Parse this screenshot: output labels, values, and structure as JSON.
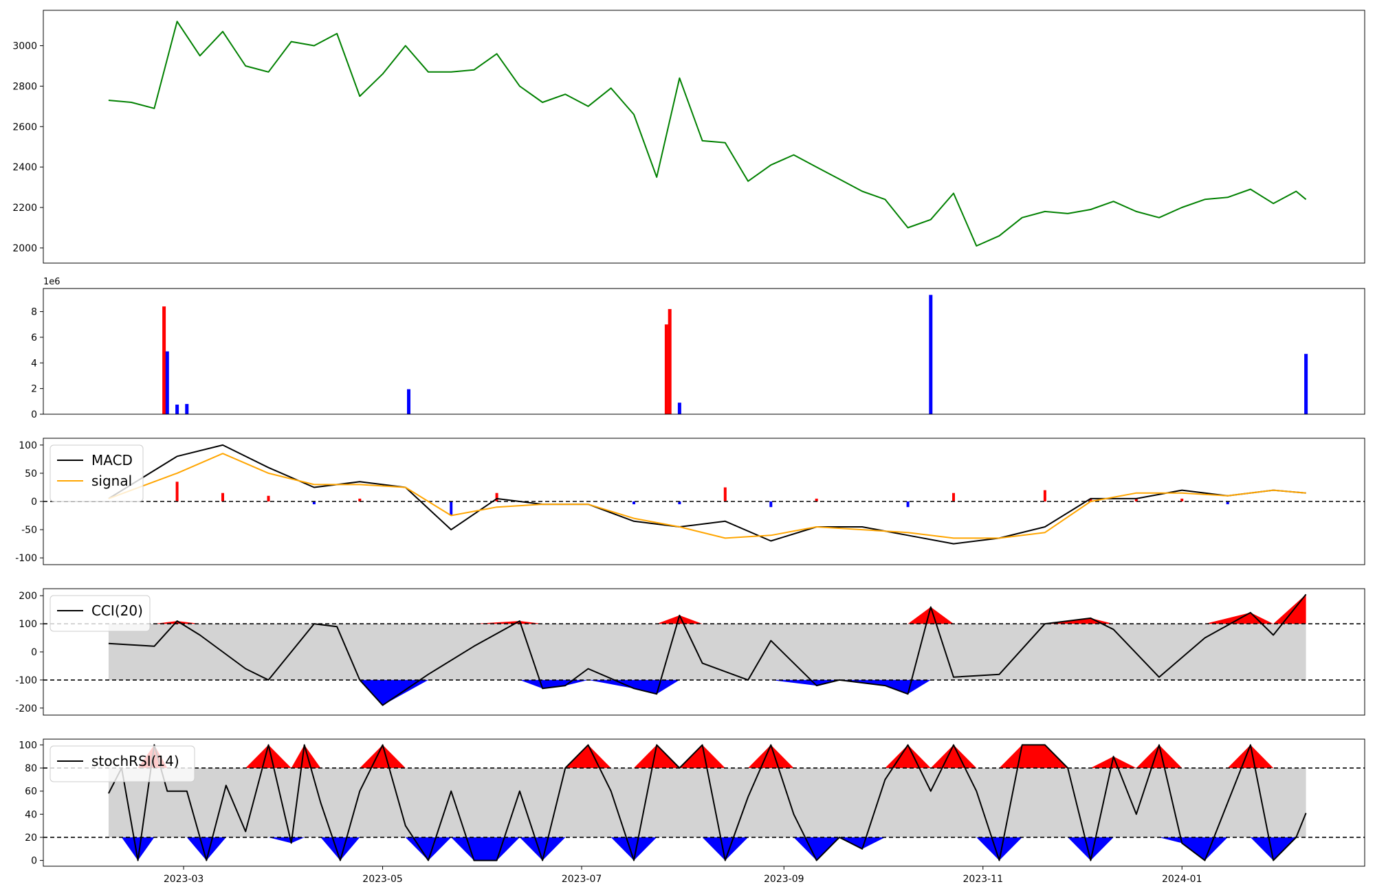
{
  "chart_data": [
    {
      "type": "line",
      "title": "",
      "xlabel": "",
      "ylabel": "",
      "xlim": [
        "2023-01-17",
        "2024-02-26"
      ],
      "ylim": [
        1925,
        3175
      ],
      "yticks": [
        2000,
        2200,
        2400,
        2600,
        2800,
        3000
      ],
      "grid": false,
      "colors": {
        "line": "#008000"
      },
      "x": [
        "2023-02-06",
        "2023-02-13",
        "2023-02-20",
        "2023-02-27",
        "2023-03-06",
        "2023-03-13",
        "2023-03-20",
        "2023-03-27",
        "2023-04-03",
        "2023-04-10",
        "2023-04-17",
        "2023-04-24",
        "2023-05-01",
        "2023-05-08",
        "2023-05-15",
        "2023-05-22",
        "2023-05-29",
        "2023-06-05",
        "2023-06-12",
        "2023-06-19",
        "2023-06-26",
        "2023-07-03",
        "2023-07-10",
        "2023-07-17",
        "2023-07-24",
        "2023-07-31",
        "2023-08-07",
        "2023-08-14",
        "2023-08-21",
        "2023-08-28",
        "2023-09-04",
        "2023-09-11",
        "2023-09-18",
        "2023-09-25",
        "2023-10-02",
        "2023-10-09",
        "2023-10-16",
        "2023-10-23",
        "2023-10-30",
        "2023-11-06",
        "2023-11-13",
        "2023-11-20",
        "2023-11-27",
        "2023-12-04",
        "2023-12-11",
        "2023-12-18",
        "2023-12-25",
        "2024-01-01",
        "2024-01-08",
        "2024-01-15",
        "2024-01-22",
        "2024-01-29",
        "2024-02-05",
        "2024-02-08"
      ],
      "y": [
        2730,
        2720,
        2690,
        3120,
        2950,
        3070,
        2900,
        2870,
        3020,
        3000,
        3060,
        2750,
        2860,
        3000,
        2870,
        2870,
        2880,
        2960,
        2800,
        2720,
        2760,
        2700,
        2790,
        2660,
        2350,
        2840,
        2530,
        2520,
        2330,
        2410,
        2460,
        2400,
        2340,
        2280,
        2240,
        2100,
        2140,
        2270,
        2010,
        2060,
        2150,
        2180,
        2170,
        2190,
        2230,
        2180,
        2150,
        2200,
        2240,
        2250,
        2290,
        2220,
        2280,
        2240
      ]
    },
    {
      "type": "bar",
      "title": "",
      "xlabel": "",
      "ylabel": "",
      "offset_label": "1e6",
      "ylim": [
        0,
        9.8
      ],
      "yticks": [
        0,
        2,
        4,
        6,
        8
      ],
      "grid": false,
      "colors": {
        "up": "#ff0000",
        "down": "#0000ff"
      },
      "x": [
        "2023-02-23",
        "2023-02-24",
        "2023-02-27",
        "2023-03-02",
        "2023-05-09",
        "2023-07-27",
        "2023-07-28",
        "2023-07-31",
        "2023-10-16",
        "2024-02-08"
      ],
      "values": [
        8.4,
        4.9,
        0.75,
        0.8,
        1.95,
        7.0,
        8.2,
        0.9,
        9.3,
        4.7
      ],
      "direction": [
        "up",
        "down",
        "down",
        "down",
        "down",
        "up",
        "up",
        "down",
        "down",
        "down"
      ]
    },
    {
      "type": "line",
      "title": "",
      "xlabel": "",
      "ylabel": "",
      "ylim": [
        -112,
        112
      ],
      "yticks": [
        -100,
        -50,
        0,
        50,
        100
      ],
      "reference_lines": [
        0
      ],
      "legend": "top-left",
      "grid": false,
      "x": [
        "2023-02-06",
        "2023-02-27",
        "2023-03-13",
        "2023-03-27",
        "2023-04-10",
        "2023-04-24",
        "2023-05-08",
        "2023-05-22",
        "2023-06-05",
        "2023-06-19",
        "2023-07-03",
        "2023-07-17",
        "2023-07-31",
        "2023-08-14",
        "2023-08-28",
        "2023-09-11",
        "2023-09-25",
        "2023-10-09",
        "2023-10-23",
        "2023-11-06",
        "2023-11-20",
        "2023-12-04",
        "2023-12-18",
        "2024-01-01",
        "2024-01-15",
        "2024-01-29",
        "2024-02-08"
      ],
      "series": [
        {
          "name": "MACD",
          "color": "#000000",
          "values": [
            5,
            80,
            100,
            60,
            25,
            35,
            25,
            -50,
            5,
            -5,
            -5,
            -35,
            -45,
            -35,
            -70,
            -45,
            -45,
            -60,
            -75,
            -65,
            -45,
            5,
            5,
            20,
            10,
            20,
            15
          ]
        },
        {
          "name": "signal",
          "color": "#ffa500",
          "values": [
            5,
            50,
            85,
            50,
            30,
            30,
            25,
            -25,
            -10,
            -5,
            -5,
            -30,
            -45,
            -65,
            -60,
            -45,
            -50,
            -55,
            -65,
            -65,
            -55,
            0,
            15,
            15,
            10,
            20,
            15
          ]
        }
      ],
      "histogram": {
        "colors": {
          "positive": "#ff0000",
          "negative": "#0000ff"
        },
        "values": [
          0,
          35,
          15,
          10,
          -5,
          5,
          0,
          -25,
          15,
          0,
          0,
          -5,
          -5,
          25,
          -10,
          5,
          0,
          -10,
          15,
          0,
          20,
          5,
          5,
          5,
          -5,
          0,
          0
        ]
      }
    },
    {
      "type": "line",
      "title": "",
      "xlabel": "",
      "ylabel": "",
      "ylim": [
        -225,
        225
      ],
      "yticks": [
        -200,
        -100,
        0,
        100,
        200
      ],
      "reference_lines": [
        100,
        -100
      ],
      "band": [
        -100,
        100
      ],
      "legend": "top-left",
      "grid": false,
      "x": [
        "2023-02-06",
        "2023-02-20",
        "2023-02-27",
        "2023-03-06",
        "2023-03-20",
        "2023-03-27",
        "2023-04-10",
        "2023-04-17",
        "2023-04-24",
        "2023-05-01",
        "2023-05-15",
        "2023-05-29",
        "2023-06-12",
        "2023-06-19",
        "2023-06-26",
        "2023-07-03",
        "2023-07-17",
        "2023-07-24",
        "2023-07-31",
        "2023-08-07",
        "2023-08-21",
        "2023-08-28",
        "2023-09-11",
        "2023-09-18",
        "2023-10-02",
        "2023-10-09",
        "2023-10-16",
        "2023-10-23",
        "2023-11-06",
        "2023-11-20",
        "2023-12-04",
        "2023-12-11",
        "2023-12-25",
        "2024-01-08",
        "2024-01-22",
        "2024-01-29",
        "2024-02-08"
      ],
      "series": [
        {
          "name": "CCI(20)",
          "color": "#000000",
          "values": [
            30,
            20,
            110,
            60,
            -60,
            -100,
            100,
            90,
            -100,
            -190,
            -80,
            20,
            110,
            -130,
            -120,
            -60,
            -130,
            -150,
            130,
            -40,
            -100,
            40,
            -120,
            -100,
            -120,
            -150,
            160,
            -90,
            -80,
            100,
            120,
            80,
            -90,
            50,
            140,
            60,
            205
          ]
        }
      ],
      "fill_colors": {
        "above": "#ff0000",
        "below": "#0000ff",
        "band": "#d3d3d3"
      }
    },
    {
      "type": "line",
      "title": "",
      "xlabel": "",
      "ylabel": "",
      "ylim": [
        -5,
        105
      ],
      "yticks": [
        0,
        20,
        40,
        60,
        80,
        100
      ],
      "reference_lines": [
        80,
        20
      ],
      "band": [
        20,
        80
      ],
      "legend": "top-left",
      "grid": false,
      "xticks": [
        "2023-03",
        "2023-05",
        "2023-07",
        "2023-09",
        "2023-11",
        "2024-01"
      ],
      "x": [
        "2023-02-06",
        "2023-02-10",
        "2023-02-15",
        "2023-02-20",
        "2023-02-24",
        "2023-03-02",
        "2023-03-08",
        "2023-03-14",
        "2023-03-20",
        "2023-03-27",
        "2023-04-03",
        "2023-04-07",
        "2023-04-12",
        "2023-04-18",
        "2023-04-24",
        "2023-05-01",
        "2023-05-08",
        "2023-05-15",
        "2023-05-22",
        "2023-05-29",
        "2023-06-05",
        "2023-06-12",
        "2023-06-19",
        "2023-06-26",
        "2023-07-03",
        "2023-07-10",
        "2023-07-17",
        "2023-07-24",
        "2023-07-31",
        "2023-08-07",
        "2023-08-14",
        "2023-08-21",
        "2023-08-28",
        "2023-09-04",
        "2023-09-11",
        "2023-09-18",
        "2023-09-25",
        "2023-10-02",
        "2023-10-09",
        "2023-10-16",
        "2023-10-23",
        "2023-10-30",
        "2023-11-06",
        "2023-11-13",
        "2023-11-20",
        "2023-11-27",
        "2023-12-04",
        "2023-12-11",
        "2023-12-18",
        "2023-12-25",
        "2024-01-01",
        "2024-01-08",
        "2024-01-15",
        "2024-01-22",
        "2024-01-29",
        "2024-02-05",
        "2024-02-08"
      ],
      "series": [
        {
          "name": "stochRSI(14)",
          "color": "#000000",
          "values": [
            58,
            80,
            0,
            100,
            60,
            60,
            0,
            65,
            25,
            100,
            15,
            100,
            50,
            0,
            60,
            100,
            30,
            0,
            60,
            0,
            0,
            60,
            0,
            80,
            100,
            60,
            0,
            100,
            80,
            100,
            0,
            55,
            100,
            40,
            0,
            20,
            10,
            70,
            100,
            60,
            100,
            60,
            0,
            100,
            100,
            80,
            0,
            90,
            40,
            100,
            15,
            0,
            50,
            100,
            0,
            20,
            41
          ]
        }
      ],
      "fill_colors": {
        "above": "#ff0000",
        "below": "#0000ff",
        "band": "#d3d3d3"
      }
    }
  ]
}
